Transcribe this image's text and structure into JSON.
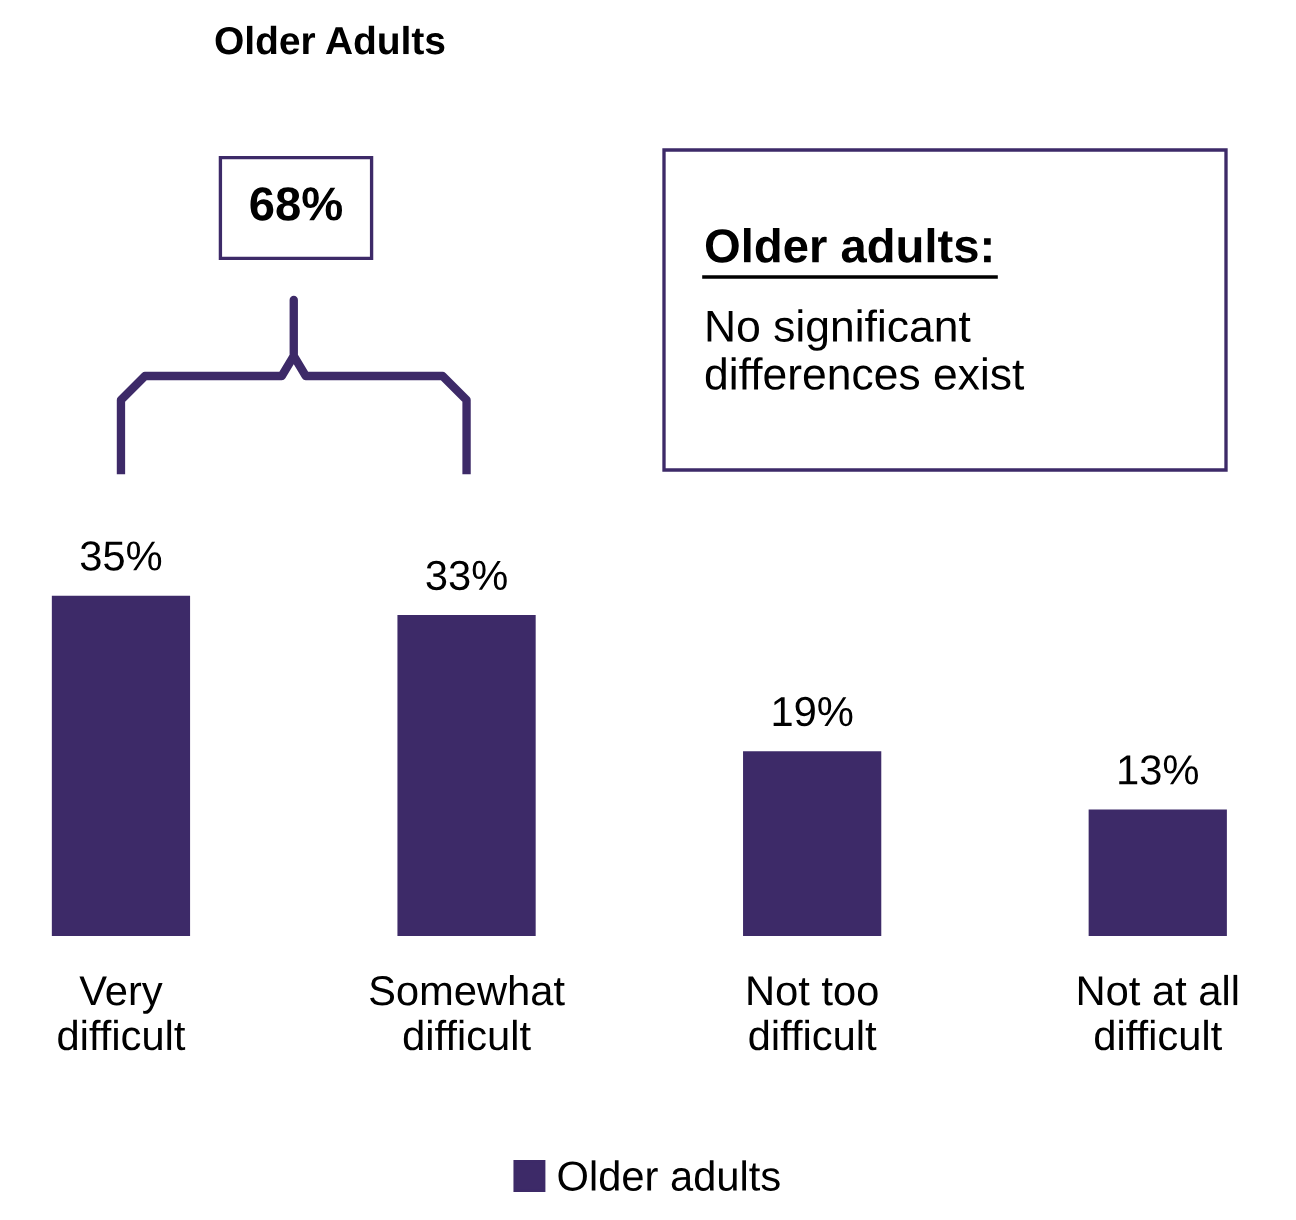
{
  "chart_data": {
    "type": "bar",
    "title": "Older Adults",
    "categories": [
      "Very\ndifficult",
      "Somewhat\ndifficult",
      "Not too\ndifficult",
      "Not at all\ndifficult"
    ],
    "series": [
      {
        "name": "Older adults",
        "color": "#3d2a68",
        "values": [
          35,
          33,
          19,
          13
        ],
        "value_labels": [
          "35%",
          "33%",
          "19%",
          "13%"
        ]
      }
    ],
    "legend": "bottom",
    "annotations": [
      "68%",
      "Older adults:",
      "No significant\ndifferences exist"
    ]
  }
}
